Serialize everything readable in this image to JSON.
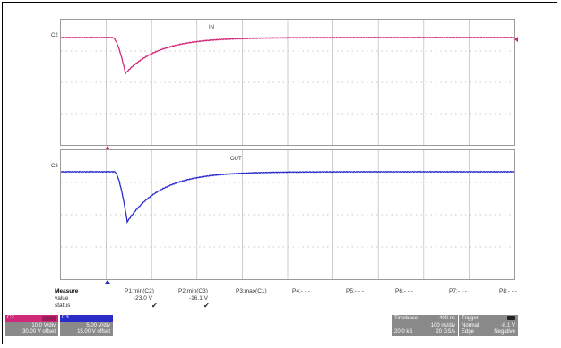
{
  "channels": {
    "c2": {
      "label": "C2",
      "trace_label": "IN",
      "color": "#d0297a"
    },
    "c3": {
      "label": "C3",
      "trace_label": "OUT",
      "color": "#2b2bc8"
    }
  },
  "measure": {
    "header": "Measure",
    "row_labels": [
      "value",
      "status"
    ],
    "params": [
      {
        "name": "P1:min(C2)",
        "value": "-23.0 V",
        "status": "✔"
      },
      {
        "name": "P2:min(C3)",
        "value": "-16.1 V",
        "status": "✔"
      },
      {
        "name": "P3:max(C1)",
        "value": "",
        "status": ""
      },
      {
        "name": "P4:- - -",
        "value": "",
        "status": ""
      },
      {
        "name": "P5:- - -",
        "value": "",
        "status": ""
      },
      {
        "name": "P6:- - -",
        "value": "",
        "status": ""
      },
      {
        "name": "P7:- - -",
        "value": "",
        "status": ""
      },
      {
        "name": "P8:- - -",
        "value": "",
        "status": ""
      }
    ]
  },
  "channel_boxes": [
    {
      "tag": "C2",
      "vdiv": "10.0 V/div",
      "offset": "30.00 V offset",
      "color": "#d0297a"
    },
    {
      "tag": "C3",
      "vdiv": "5.00 V/div",
      "offset": "15.00 V offset",
      "color": "#2b2bc8"
    }
  ],
  "timebase": {
    "title": "Timebase",
    "delay": "-400 ns",
    "per_div": "100 ns/div",
    "samples": "20.0 kS",
    "rate": "20 GS/s"
  },
  "trigger": {
    "title": "Trigger",
    "level": "-8.1 V",
    "mode": "Normal",
    "type": "Edge",
    "slope": "Negative"
  }
}
